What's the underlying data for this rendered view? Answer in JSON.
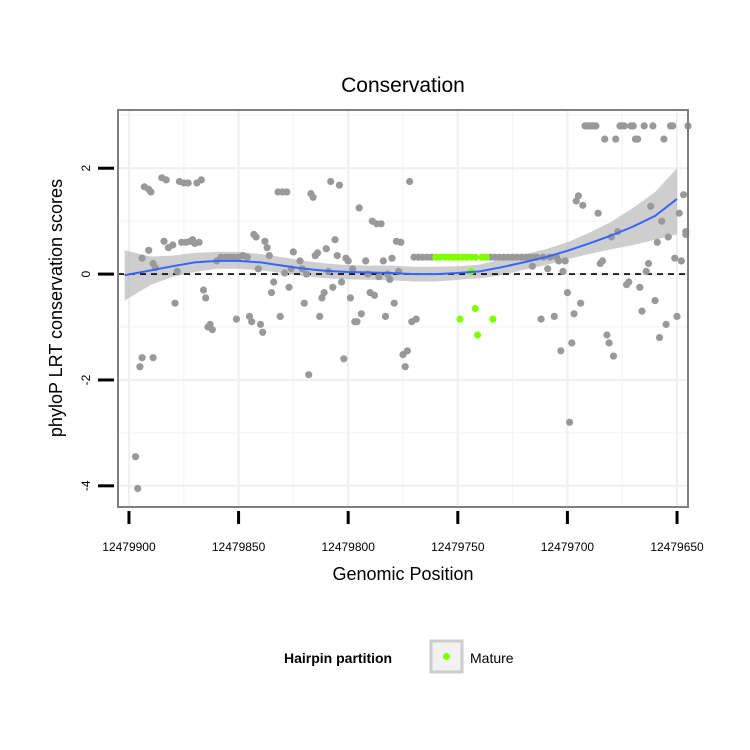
{
  "chart_data": {
    "type": "scatter",
    "title": "Conservation",
    "xlabel": "Genomic Position",
    "ylabel": "phyloP LRT conservation scores",
    "x_reversed": true,
    "xlim": [
      12479905,
      12479645
    ],
    "ylim": [
      -4.4,
      3.1
    ],
    "x_ticks": [
      12479900,
      12479850,
      12479800,
      12479750,
      12479700,
      12479650
    ],
    "x_tick_labels": [
      "12479900",
      "12479850",
      "12479800",
      "12479750",
      "12479700",
      "12479650"
    ],
    "y_ticks": [
      -4,
      -2,
      0,
      2
    ],
    "y_tick_labels": [
      "-4",
      "-2",
      "0",
      "2"
    ],
    "reference_line": {
      "y": 0,
      "style": "dashed",
      "color": "#000000"
    },
    "point_color": "#999999",
    "grid": true,
    "series": [
      {
        "name": "background",
        "color": "#999999",
        "points": [
          [
            12479897,
            -3.45
          ],
          [
            12479896,
            -4.05
          ],
          [
            12479895,
            -1.75
          ],
          [
            12479894,
            -1.58
          ],
          [
            12479894,
            0.3
          ],
          [
            12479893,
            1.65
          ],
          [
            12479891,
            1.6
          ],
          [
            12479891,
            0.45
          ],
          [
            12479890,
            1.55
          ],
          [
            12479889,
            -1.58
          ],
          [
            12479889,
            0.2
          ],
          [
            12479888,
            0.12
          ],
          [
            12479885,
            1.82
          ],
          [
            12479884,
            0.62
          ],
          [
            12479883,
            1.78
          ],
          [
            12479882,
            0.5
          ],
          [
            12479880,
            0.55
          ],
          [
            12479879,
            -0.55
          ],
          [
            12479878,
            0.05
          ],
          [
            12479877,
            1.75
          ],
          [
            12479876,
            0.6
          ],
          [
            12479875,
            1.72
          ],
          [
            12479874,
            0.6
          ],
          [
            12479873,
            1.72
          ],
          [
            12479872,
            0.62
          ],
          [
            12479871,
            0.65
          ],
          [
            12479870,
            0.58
          ],
          [
            12479869,
            1.72
          ],
          [
            12479868,
            0.6
          ],
          [
            12479867,
            1.78
          ],
          [
            12479866,
            -0.3
          ],
          [
            12479865,
            -0.45
          ],
          [
            12479864,
            -1.0
          ],
          [
            12479863,
            -0.95
          ],
          [
            12479862,
            -1.05
          ],
          [
            12479860,
            0.25
          ],
          [
            12479858,
            0.32
          ],
          [
            12479856,
            0.32
          ],
          [
            12479854,
            0.32
          ],
          [
            12479852,
            0.32
          ],
          [
            12479851,
            -0.85
          ],
          [
            12479850,
            0.32
          ],
          [
            12479848,
            0.35
          ],
          [
            12479846,
            0.32
          ],
          [
            12479845,
            -0.8
          ],
          [
            12479844,
            -0.9
          ],
          [
            12479843,
            0.75
          ],
          [
            12479842,
            0.7
          ],
          [
            12479841,
            0.1
          ],
          [
            12479840,
            -0.95
          ],
          [
            12479839,
            -1.1
          ],
          [
            12479838,
            0.62
          ],
          [
            12479837,
            0.5
          ],
          [
            12479836,
            0.35
          ],
          [
            12479835,
            -0.35
          ],
          [
            12479834,
            -0.15
          ],
          [
            12479832,
            1.55
          ],
          [
            12479831,
            -0.8
          ],
          [
            12479830,
            1.55
          ],
          [
            12479829,
            0.02
          ],
          [
            12479828,
            1.55
          ],
          [
            12479827,
            -0.25
          ],
          [
            12479826,
            0.1
          ],
          [
            12479825,
            0.42
          ],
          [
            12479822,
            0.25
          ],
          [
            12479821,
            0.1
          ],
          [
            12479820,
            -0.55
          ],
          [
            12479819,
            0.0
          ],
          [
            12479818,
            -1.9
          ],
          [
            12479817,
            1.52
          ],
          [
            12479816,
            1.45
          ],
          [
            12479815,
            0.35
          ],
          [
            12479814,
            0.4
          ],
          [
            12479813,
            -0.8
          ],
          [
            12479812,
            -0.45
          ],
          [
            12479811,
            -0.35
          ],
          [
            12479810,
            0.48
          ],
          [
            12479809,
            0.05
          ],
          [
            12479808,
            1.75
          ],
          [
            12479807,
            -0.25
          ],
          [
            12479806,
            0.65
          ],
          [
            12479805,
            0.35
          ],
          [
            12479804,
            1.68
          ],
          [
            12479803,
            -0.15
          ],
          [
            12479802,
            -1.6
          ],
          [
            12479801,
            0.3
          ],
          [
            12479800,
            0.25
          ],
          [
            12479799,
            -0.45
          ],
          [
            12479798,
            0.1
          ],
          [
            12479797,
            -0.9
          ],
          [
            12479796,
            -0.9
          ],
          [
            12479795,
            1.25
          ],
          [
            12479794,
            -0.75
          ],
          [
            12479792,
            0.25
          ],
          [
            12479791,
            0.0
          ],
          [
            12479790,
            -0.35
          ],
          [
            12479789,
            1.0
          ],
          [
            12479788,
            -0.4
          ],
          [
            12479787,
            0.95
          ],
          [
            12479786,
            -0.05
          ],
          [
            12479785,
            0.95
          ],
          [
            12479784,
            0.25
          ],
          [
            12479783,
            -0.8
          ],
          [
            12479782,
            0.0
          ],
          [
            12479781,
            -0.1
          ],
          [
            12479780,
            0.3
          ],
          [
            12479779,
            -0.55
          ],
          [
            12479778,
            0.62
          ],
          [
            12479777,
            0.05
          ],
          [
            12479776,
            0.6
          ],
          [
            12479775,
            -1.52
          ],
          [
            12479774,
            -1.75
          ],
          [
            12479773,
            -1.45
          ],
          [
            12479772,
            1.75
          ],
          [
            12479771,
            -0.9
          ],
          [
            12479770,
            0.32
          ],
          [
            12479769,
            -0.85
          ],
          [
            12479768,
            0.32
          ],
          [
            12479766,
            0.32
          ],
          [
            12479764,
            0.32
          ],
          [
            12479762,
            0.32
          ],
          [
            12479735,
            0.32
          ],
          [
            12479733,
            0.32
          ],
          [
            12479731,
            0.32
          ],
          [
            12479729,
            0.32
          ],
          [
            12479727,
            0.32
          ],
          [
            12479725,
            0.32
          ],
          [
            12479723,
            0.32
          ],
          [
            12479721,
            0.32
          ],
          [
            12479719,
            0.32
          ],
          [
            12479717,
            0.32
          ],
          [
            12479716,
            0.15
          ],
          [
            12479715,
            0.32
          ],
          [
            12479714,
            0.32
          ],
          [
            12479712,
            -0.85
          ],
          [
            12479711,
            0.32
          ],
          [
            12479709,
            0.1
          ],
          [
            12479708,
            0.32
          ],
          [
            12479706,
            -0.8
          ],
          [
            12479705,
            0.32
          ],
          [
            12479704,
            0.25
          ],
          [
            12479703,
            -1.45
          ],
          [
            12479702,
            0.05
          ],
          [
            12479701,
            0.25
          ],
          [
            12479700,
            -0.35
          ],
          [
            12479699,
            -2.8
          ],
          [
            12479698,
            -1.3
          ],
          [
            12479697,
            -0.75
          ],
          [
            12479696,
            1.38
          ],
          [
            12479695,
            1.48
          ],
          [
            12479694,
            -0.55
          ],
          [
            12479693,
            1.3
          ],
          [
            12479692,
            2.8
          ],
          [
            12479691,
            2.8
          ],
          [
            12479690,
            2.8
          ],
          [
            12479689,
            2.8
          ],
          [
            12479688,
            2.8
          ],
          [
            12479687,
            2.8
          ],
          [
            12479686,
            1.15
          ],
          [
            12479685,
            0.2
          ],
          [
            12479684,
            0.25
          ],
          [
            12479683,
            2.55
          ],
          [
            12479682,
            -1.15
          ],
          [
            12479681,
            -1.3
          ],
          [
            12479680,
            0.7
          ],
          [
            12479679,
            -1.55
          ],
          [
            12479678,
            2.55
          ],
          [
            12479677,
            0.8
          ],
          [
            12479676,
            2.8
          ],
          [
            12479675,
            2.8
          ],
          [
            12479674,
            2.8
          ],
          [
            12479673,
            -0.2
          ],
          [
            12479672,
            -0.15
          ],
          [
            12479671,
            2.8
          ],
          [
            12479670,
            2.8
          ],
          [
            12479669,
            2.55
          ],
          [
            12479668,
            2.55
          ],
          [
            12479667,
            -0.25
          ],
          [
            12479666,
            -0.7
          ],
          [
            12479665,
            2.8
          ],
          [
            12479664,
            0.05
          ],
          [
            12479663,
            0.2
          ],
          [
            12479662,
            1.28
          ],
          [
            12479661,
            2.8
          ],
          [
            12479660,
            -0.5
          ],
          [
            12479659,
            0.6
          ],
          [
            12479658,
            -1.2
          ],
          [
            12479657,
            1.0
          ],
          [
            12479656,
            2.55
          ],
          [
            12479655,
            -0.95
          ],
          [
            12479654,
            0.7
          ],
          [
            12479653,
            2.8
          ],
          [
            12479652,
            2.8
          ],
          [
            12479651,
            0.3
          ],
          [
            12479650,
            -0.8
          ],
          [
            12479649,
            1.15
          ],
          [
            12479648,
            0.25
          ],
          [
            12479647,
            1.5
          ],
          [
            12479646,
            0.8
          ],
          [
            12479645,
            2.8
          ],
          [
            12479646,
            0.75
          ]
        ]
      },
      {
        "name": "Mature",
        "color": "#7fff00",
        "points": [
          [
            12479760,
            0.32
          ],
          [
            12479758,
            0.32
          ],
          [
            12479756,
            0.32
          ],
          [
            12479754,
            0.32
          ],
          [
            12479752,
            0.32
          ],
          [
            12479750,
            0.32
          ],
          [
            12479748,
            0.32
          ],
          [
            12479746,
            0.32
          ],
          [
            12479744,
            0.32
          ],
          [
            12479742,
            0.32
          ],
          [
            12479739,
            0.32
          ],
          [
            12479737,
            0.32
          ],
          [
            12479744,
            0.05
          ],
          [
            12479749,
            -0.85
          ],
          [
            12479742,
            -0.65
          ],
          [
            12479734,
            -0.85
          ],
          [
            12479741,
            -1.15
          ]
        ]
      }
    ],
    "smooth": {
      "color": "#3366ff",
      "ribbon_color": "#b3b3b3",
      "x": [
        12479902,
        12479890,
        12479880,
        12479870,
        12479860,
        12479850,
        12479840,
        12479830,
        12479820,
        12479810,
        12479800,
        12479790,
        12479780,
        12479770,
        12479760,
        12479750,
        12479740,
        12479730,
        12479720,
        12479710,
        12479700,
        12479690,
        12479680,
        12479670,
        12479660,
        12479650
      ],
      "y": [
        -0.02,
        0.07,
        0.15,
        0.22,
        0.25,
        0.25,
        0.22,
        0.16,
        0.1,
        0.06,
        0.04,
        0.03,
        0.02,
        0.0,
        0.0,
        0.02,
        0.05,
        0.13,
        0.22,
        0.32,
        0.44,
        0.58,
        0.73,
        0.9,
        1.1,
        1.42
      ],
      "lower": [
        -0.5,
        -0.2,
        -0.05,
        0.04,
        0.1,
        0.1,
        0.07,
        0.02,
        -0.04,
        -0.08,
        -0.1,
        -0.11,
        -0.12,
        -0.14,
        -0.14,
        -0.11,
        -0.08,
        -0.02,
        0.08,
        0.17,
        0.28,
        0.38,
        0.47,
        0.55,
        0.65,
        0.75
      ],
      "upper": [
        0.45,
        0.33,
        0.35,
        0.4,
        0.42,
        0.42,
        0.38,
        0.32,
        0.25,
        0.2,
        0.17,
        0.16,
        0.16,
        0.14,
        0.14,
        0.15,
        0.18,
        0.28,
        0.37,
        0.47,
        0.6,
        0.78,
        0.99,
        1.25,
        1.55,
        2.0
      ]
    },
    "legend": {
      "title": "Hairpin partition",
      "entries": [
        {
          "label": "Mature",
          "color": "#7fff00"
        }
      ],
      "position": "bottom"
    }
  }
}
